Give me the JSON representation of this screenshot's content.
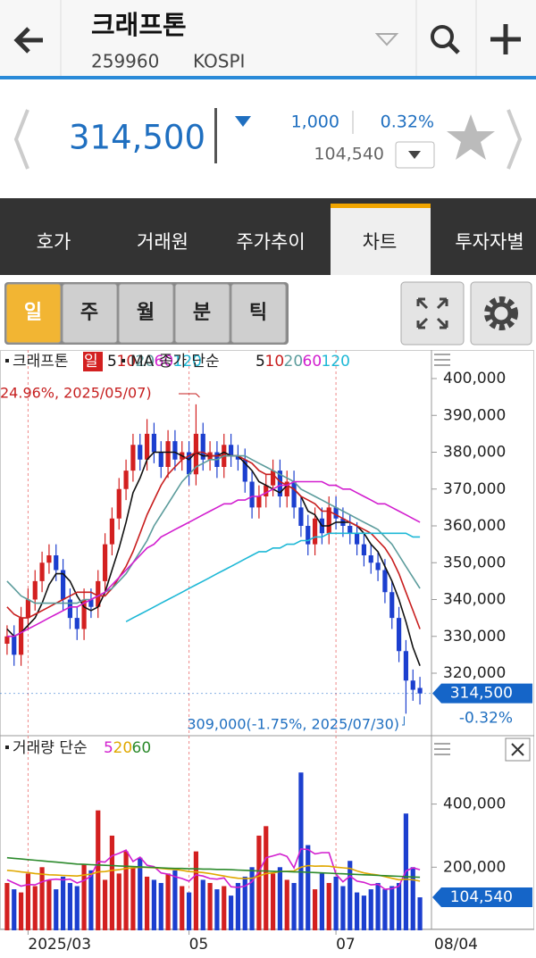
{
  "header": {
    "title": "크래프톤",
    "code": "259960",
    "market": "KOSPI"
  },
  "quote": {
    "price": "314,500",
    "change": "1,000",
    "change_pct": "0.32%",
    "volume": "104,540"
  },
  "tabs": [
    "호가",
    "거래원",
    "주가추이",
    "차트",
    "투자자별"
  ],
  "periods": [
    "일",
    "주",
    "월",
    "분",
    "틱"
  ],
  "chart_data": [
    {
      "type": "candlestick",
      "title": "크래프톤",
      "period": "일",
      "ma_label": "MA 종가 단순",
      "up_color": "#d32020",
      "down_color": "#1c3fcf",
      "categories": [
        null,
        null,
        null,
        "2025/03",
        null,
        null,
        null,
        null,
        null,
        null,
        null,
        null,
        null,
        null,
        null,
        null,
        null,
        null,
        null,
        null,
        null,
        null,
        null,
        null,
        null,
        null,
        "05",
        null,
        null,
        null,
        null,
        null,
        null,
        null,
        null,
        null,
        null,
        null,
        null,
        null,
        null,
        null,
        null,
        null,
        null,
        null,
        null,
        "07",
        null,
        null,
        null,
        null,
        null,
        null,
        null,
        null,
        null,
        null,
        null,
        null
      ],
      "open": [
        328000,
        330000,
        325000,
        335000,
        340000,
        345000,
        350000,
        352000,
        348000,
        340000,
        335000,
        332000,
        340000,
        338000,
        345000,
        355000,
        362000,
        370000,
        375000,
        382000,
        378000,
        385000,
        380000,
        376000,
        383000,
        378000,
        380000,
        374000,
        385000,
        378000,
        380000,
        376000,
        382000,
        379000,
        378000,
        372000,
        365000,
        368000,
        371000,
        375000,
        368000,
        372000,
        365000,
        360000,
        355000,
        362000,
        358000,
        365000,
        362000,
        360000,
        358000,
        355000,
        352000,
        350000,
        348000,
        342000,
        335000,
        326000,
        318000,
        316000
      ],
      "high": [
        333000,
        333000,
        338000,
        343000,
        348000,
        353000,
        355000,
        355000,
        351000,
        343000,
        338000,
        343000,
        343000,
        348000,
        358000,
        365000,
        373000,
        378000,
        385000,
        385000,
        389000,
        388000,
        383000,
        386000,
        386000,
        383000,
        383000,
        393000,
        388000,
        383000,
        383000,
        385000,
        385000,
        382000,
        381000,
        375000,
        371000,
        374000,
        378000,
        378000,
        375000,
        375000,
        368000,
        363000,
        365000,
        365000,
        368000,
        368000,
        365000,
        363000,
        361000,
        358000,
        355000,
        353000,
        351000,
        345000,
        338000,
        329000,
        321000,
        319000
      ],
      "low": [
        325000,
        322000,
        322000,
        332000,
        337000,
        342000,
        347000,
        345000,
        337000,
        332000,
        329000,
        329000,
        335000,
        335000,
        342000,
        352000,
        359000,
        367000,
        372000,
        375000,
        375000,
        377000,
        373000,
        373000,
        375000,
        375000,
        371000,
        371000,
        375000,
        375000,
        373000,
        373000,
        376000,
        375000,
        369000,
        362000,
        362000,
        365000,
        368000,
        365000,
        365000,
        362000,
        357000,
        352000,
        352000,
        355000,
        355000,
        359000,
        357000,
        355000,
        352000,
        349000,
        347000,
        345000,
        339000,
        332000,
        323000,
        309000,
        312500,
        311500
      ],
      "close": [
        330000,
        325000,
        335000,
        340000,
        345000,
        350000,
        352000,
        348000,
        340000,
        335000,
        332000,
        340000,
        338000,
        345000,
        355000,
        362000,
        370000,
        375000,
        382000,
        378000,
        385000,
        380000,
        376000,
        383000,
        378000,
        380000,
        374000,
        385000,
        378000,
        380000,
        376000,
        382000,
        379000,
        378000,
        372000,
        365000,
        368000,
        371000,
        375000,
        368000,
        372000,
        365000,
        360000,
        355000,
        362000,
        358000,
        365000,
        362000,
        360000,
        358000,
        355000,
        352000,
        350000,
        348000,
        342000,
        335000,
        326000,
        318000,
        315500,
        314500
      ],
      "series": [
        {
          "name": "5",
          "color": "#111111",
          "values": [
            332000,
            330000,
            331000,
            333000,
            335000,
            339000,
            344000,
            347000,
            347000,
            345000,
            341000,
            338000,
            337000,
            338000,
            342000,
            348000,
            354000,
            361000,
            369000,
            373000,
            378000,
            380000,
            380000,
            380000,
            380000,
            379000,
            378000,
            380000,
            379000,
            379000,
            379000,
            380000,
            379000,
            379000,
            377000,
            375000,
            372000,
            371000,
            370000,
            369000,
            371000,
            370000,
            368000,
            364000,
            363000,
            360000,
            360000,
            361000,
            361000,
            361000,
            360000,
            358000,
            355000,
            353000,
            349000,
            345000,
            340000,
            334000,
            327000,
            322000
          ]
        },
        {
          "name": "10",
          "color": "#c81e1e",
          "values": [
            338000,
            336000,
            335000,
            335000,
            336000,
            337000,
            338000,
            339000,
            340000,
            341000,
            342000,
            342000,
            342000,
            341000,
            341000,
            343000,
            346000,
            349000,
            353000,
            358000,
            363000,
            367000,
            371000,
            374000,
            376000,
            378000,
            379000,
            380000,
            380000,
            379000,
            379000,
            379000,
            379000,
            379000,
            378000,
            377000,
            375000,
            374000,
            374000,
            372000,
            371000,
            370000,
            368000,
            367000,
            366000,
            364000,
            364000,
            363000,
            362000,
            361000,
            360000,
            359000,
            358000,
            356000,
            354000,
            351000,
            347000,
            342000,
            337000,
            332000
          ]
        },
        {
          "name": "20",
          "color": "#5c9c9c",
          "values": [
            345000,
            343000,
            341000,
            340000,
            339000,
            339000,
            339000,
            339000,
            339000,
            339000,
            339000,
            340000,
            340000,
            341000,
            342000,
            343000,
            345000,
            347000,
            350000,
            353000,
            356000,
            360000,
            363000,
            366000,
            369000,
            372000,
            374000,
            376000,
            377000,
            378000,
            378000,
            379000,
            379000,
            379000,
            379000,
            378000,
            377000,
            376000,
            375000,
            374000,
            373000,
            372000,
            370000,
            369000,
            368000,
            367000,
            366000,
            365000,
            364000,
            363000,
            362000,
            361000,
            360000,
            359000,
            357000,
            355000,
            352000,
            349000,
            346000,
            343000
          ]
        },
        {
          "name": "60",
          "color": "#d21fcf",
          "values": [
            330000,
            330000,
            331000,
            332000,
            333000,
            334000,
            335000,
            336000,
            337000,
            338000,
            338000,
            339000,
            340000,
            341000,
            342000,
            344000,
            346000,
            348000,
            350000,
            352000,
            354000,
            355000,
            357000,
            358000,
            359000,
            360000,
            361000,
            362000,
            363000,
            364000,
            365000,
            366000,
            366000,
            367000,
            367000,
            368000,
            368000,
            369000,
            370000,
            371000,
            371000,
            372000,
            372000,
            372000,
            372000,
            372000,
            371000,
            371000,
            370000,
            370000,
            369000,
            368000,
            367000,
            366000,
            366000,
            365000,
            364000,
            363000,
            362000,
            361000
          ]
        },
        {
          "name": "120",
          "color": "#1eb8d6",
          "values": [
            null,
            null,
            null,
            null,
            null,
            null,
            null,
            null,
            null,
            null,
            null,
            null,
            null,
            null,
            null,
            null,
            null,
            334000,
            335000,
            336000,
            337000,
            338000,
            339000,
            340000,
            341000,
            342000,
            343000,
            344000,
            345000,
            346000,
            347000,
            348000,
            349000,
            350000,
            351000,
            352000,
            353000,
            353000,
            354000,
            354000,
            355000,
            355000,
            356000,
            356000,
            357000,
            357000,
            358000,
            358000,
            358000,
            358000,
            358000,
            358000,
            358000,
            358000,
            358000,
            358000,
            358000,
            358000,
            357000,
            357000
          ]
        }
      ],
      "ylim": [
        303515,
        407758
      ],
      "yticks": [
        {
          "value": 320000,
          "label": "320,000"
        },
        {
          "value": 330000,
          "label": "330,000"
        },
        {
          "value": 340000,
          "label": "340,000"
        },
        {
          "value": 350000,
          "label": "350,000"
        },
        {
          "value": 360000,
          "label": "360,000"
        },
        {
          "value": 370000,
          "label": "370,000"
        },
        {
          "value": 380000,
          "label": "380,000"
        },
        {
          "value": 390000,
          "label": "390,000"
        },
        {
          "value": 400000,
          "label": "400,000"
        }
      ],
      "high_annotation": "24.96%, 2025/05/07)",
      "low_annotation": "309,000(-1.75%, 2025/07/30)",
      "last_label": "314,500",
      "last_change": "-0.32%"
    },
    {
      "type": "bar",
      "title": "거래량 단순",
      "values": [
        150000,
        130000,
        120000,
        180000,
        140000,
        200000,
        160000,
        130000,
        170000,
        150000,
        140000,
        210000,
        190000,
        380000,
        160000,
        300000,
        180000,
        250000,
        200000,
        230000,
        170000,
        160000,
        150000,
        180000,
        190000,
        140000,
        120000,
        250000,
        160000,
        150000,
        130000,
        140000,
        110000,
        150000,
        170000,
        200000,
        300000,
        330000,
        180000,
        200000,
        160000,
        150000,
        500000,
        270000,
        130000,
        180000,
        150000,
        170000,
        140000,
        220000,
        120000,
        110000,
        130000,
        150000,
        130000,
        140000,
        150000,
        370000,
        200000,
        104540
      ],
      "series": [
        {
          "name": "5",
          "color": "#d21fcf",
          "values": [
            160000,
            150000,
            140000,
            145000,
            144000,
            154000,
            160000,
            162000,
            160000,
            162000,
            150000,
            158000,
            172000,
            218000,
            216000,
            236000,
            244000,
            254000,
            218000,
            232000,
            206000,
            202000,
            182000,
            178000,
            170000,
            164000,
            156000,
            176000,
            172000,
            164000,
            162000,
            166000,
            138000,
            136000,
            140000,
            154000,
            186000,
            230000,
            236000,
            242000,
            234000,
            198000,
            258000,
            256000,
            242000,
            246000,
            246000,
            178000,
            154000,
            172000,
            156000,
            152000,
            144000,
            146000,
            130000,
            132000,
            140000,
            188000,
            198000,
            192000
          ]
        },
        {
          "name": "20",
          "color": "#e0a800",
          "values": [
            190000,
            188000,
            185000,
            183000,
            180000,
            178000,
            176000,
            175000,
            174000,
            173000,
            172000,
            175000,
            178000,
            185000,
            186000,
            190000,
            192000,
            196000,
            198000,
            200000,
            199000,
            198000,
            196000,
            194000,
            193000,
            190000,
            186000,
            185000,
            183000,
            180000,
            176000,
            172000,
            168000,
            165000,
            164000,
            165000,
            172000,
            180000,
            182000,
            186000,
            187000,
            188000,
            200000,
            205000,
            203000,
            204000,
            203000,
            200000,
            198000,
            196000,
            188000,
            182000,
            178000,
            175000,
            170000,
            165000,
            160000,
            162000,
            160000,
            156000
          ]
        },
        {
          "name": "60",
          "color": "#2c8a2c",
          "values": [
            230000,
            228000,
            226000,
            224000,
            222000,
            220000,
            218000,
            216000,
            214000,
            212000,
            210000,
            209000,
            208000,
            207000,
            206000,
            205000,
            204000,
            203000,
            202000,
            201000,
            200000,
            199000,
            198000,
            197000,
            196000,
            196000,
            195000,
            195000,
            194000,
            194000,
            193000,
            193000,
            192000,
            191000,
            190000,
            189000,
            188000,
            188000,
            187000,
            186000,
            186000,
            185000,
            185000,
            184000,
            183000,
            182000,
            181000,
            180000,
            179000,
            178000,
            177000,
            176000,
            175000,
            174000,
            173000,
            172000,
            171000,
            170000,
            169000,
            168000
          ]
        }
      ],
      "ylim": [
        0,
        611000
      ],
      "yticks": [
        {
          "value": 200000,
          "label": "200,000"
        },
        {
          "value": 400000,
          "label": "400,000"
        }
      ],
      "last_label": "104,540"
    }
  ],
  "last_date": "08/04"
}
